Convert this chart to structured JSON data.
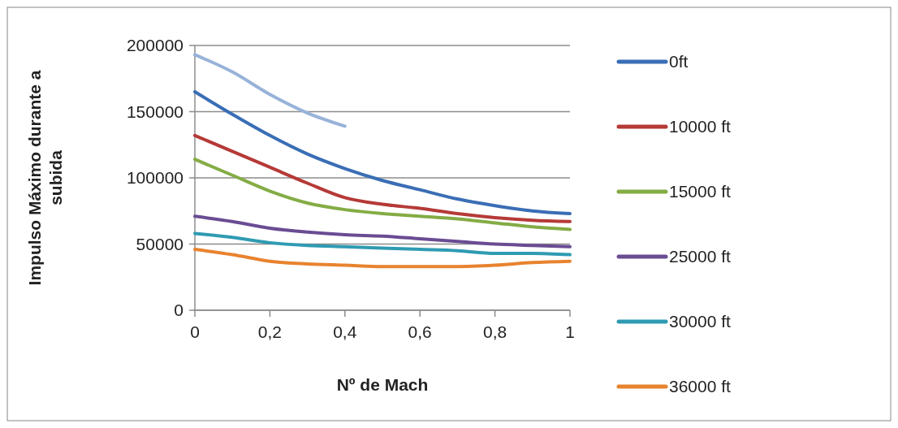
{
  "chart_data": {
    "type": "line",
    "xlabel": "Nº de Mach",
    "ylabel": "Impulso Máximo durante a subida",
    "x": [
      0,
      0.1,
      0.2,
      0.3,
      0.4,
      0.5,
      0.6,
      0.7,
      0.8,
      0.9,
      1
    ],
    "series": [
      {
        "name": "0ft",
        "color": "#3a6eb5",
        "values": [
          165000,
          148000,
          132000,
          118000,
          107000,
          98000,
          91000,
          84000,
          79000,
          75000,
          73000
        ]
      },
      {
        "name": "10000 ft",
        "color": "#b53a37",
        "values": [
          132000,
          120000,
          108000,
          96000,
          85000,
          80000,
          77000,
          73000,
          70000,
          68000,
          67000
        ]
      },
      {
        "name": "15000 ft",
        "color": "#84ac45",
        "values": [
          114000,
          102000,
          90000,
          81000,
          76000,
          73000,
          71000,
          69000,
          66000,
          63000,
          61000
        ]
      },
      {
        "name": "25000 ft",
        "color": "#6a4c93",
        "values": [
          71000,
          67000,
          62000,
          59000,
          57000,
          56000,
          54000,
          52000,
          50000,
          49000,
          48000
        ]
      },
      {
        "name": "30000 ft",
        "color": "#2f9bb3",
        "values": [
          58000,
          55000,
          51000,
          49000,
          48000,
          47000,
          46000,
          45000,
          43000,
          43000,
          42000
        ]
      },
      {
        "name": "36000 ft",
        "color": "#e8832f",
        "values": [
          46000,
          42000,
          37000,
          35000,
          34000,
          33000,
          33000,
          33000,
          34000,
          36000,
          37000
        ]
      },
      {
        "color": "#98b3d9",
        "values": [
          193000,
          180000,
          163000,
          149000,
          139000,
          null,
          null,
          null,
          null,
          null,
          null
        ]
      }
    ],
    "xlim": [
      0,
      1
    ],
    "xticks": [
      0,
      {
        "value": 0.2,
        "label": "0,2"
      },
      {
        "value": 0.4,
        "label": "0,4"
      },
      {
        "value": 0.6,
        "label": "0,6"
      },
      {
        "value": 0.8,
        "label": "0,8"
      },
      1
    ],
    "ylim": [
      0,
      200000
    ],
    "yticks": [
      0,
      50000,
      100000,
      150000,
      200000
    ],
    "grid": "y",
    "legend": "right",
    "marker": "none",
    "line_style": "solid"
  }
}
